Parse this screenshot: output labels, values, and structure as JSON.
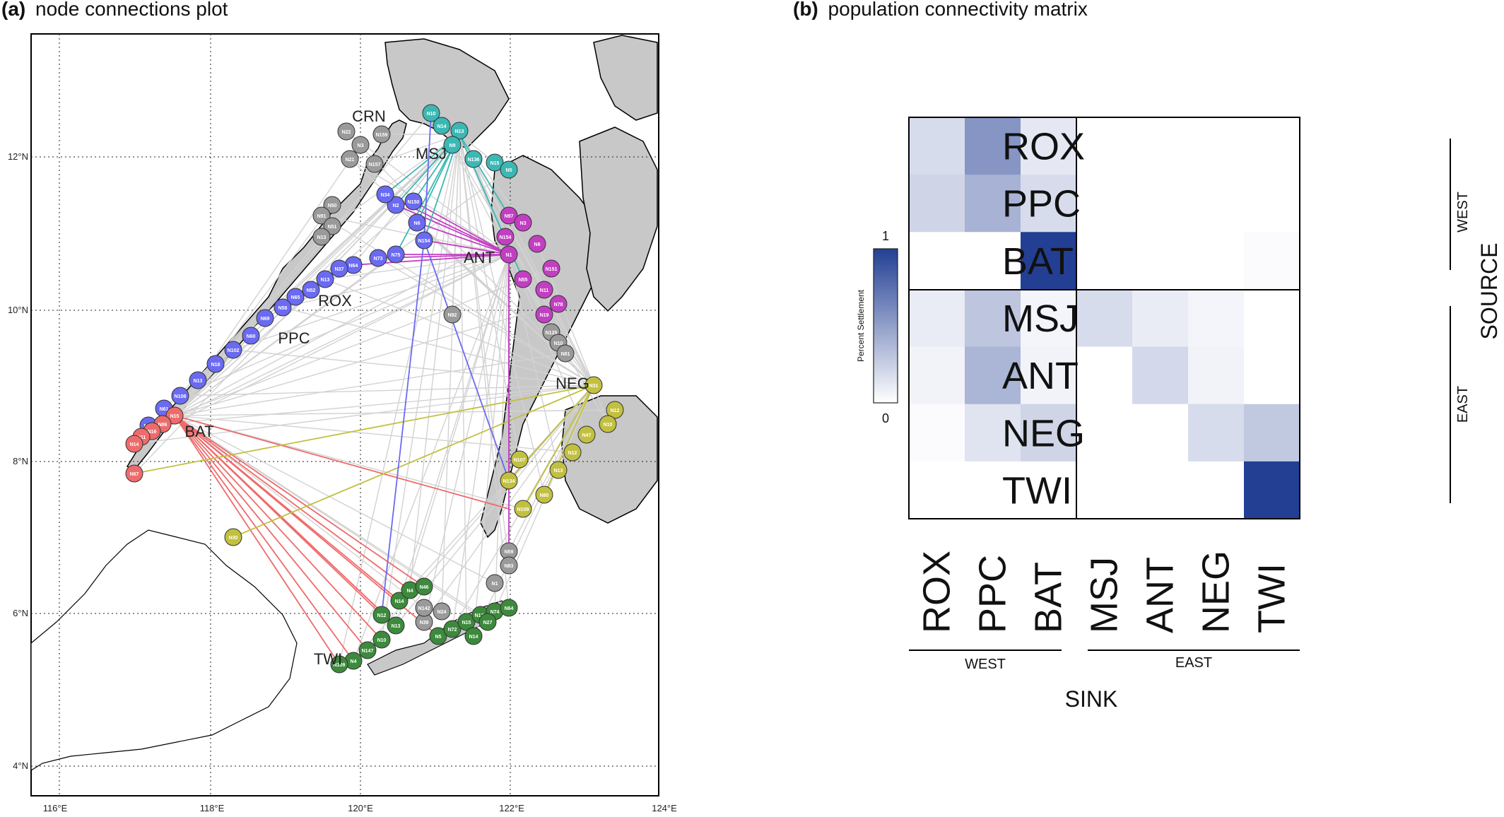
{
  "panel_a": {
    "letter": "(a)",
    "title": "node connections plot",
    "x_ticks": [
      "116°E",
      "118°E",
      "120°E",
      "122°E",
      "124°E"
    ],
    "y_ticks": [
      "12°N",
      "10°N",
      "8°N",
      "6°N",
      "4°N"
    ],
    "region_labels": [
      "CRN",
      "MSJ",
      "ANT",
      "ROX",
      "PPC",
      "NEG",
      "BAT",
      "TWI"
    ],
    "colors": {
      "west_blue": "#6a6af2",
      "msj_teal": "#3cb8b4",
      "ant_magenta": "#c23fc2",
      "neg_olive": "#c2c040",
      "bat_red": "#ef6b6b",
      "twi_green": "#3d8a3d",
      "other_gray": "#9a9a9a",
      "land": "#c8c8c8",
      "link_gray": "#d2d2d2"
    },
    "nodes": {
      "CRN": [
        "N22",
        "N159",
        "N3",
        "N21",
        "N157"
      ],
      "MSJ": [
        "N10",
        "N14",
        "N13",
        "N9",
        "N136",
        "N15",
        "N5"
      ],
      "ROX": [
        "N2",
        "N34",
        "N150",
        "N6",
        "N154",
        "N75",
        "N73",
        "N64",
        "N37",
        "N13",
        "N52",
        "N65",
        "N58",
        "N69",
        "N60",
        "N102",
        "N18",
        "N13",
        "N108",
        "N61",
        "N83"
      ],
      "ANT": [
        "N97",
        "N3",
        "N154",
        "N8",
        "N1",
        "N151",
        "N55",
        "N11",
        "N78",
        "N19"
      ],
      "NEG": [
        "N31",
        "N12",
        "N10",
        "N47",
        "N12",
        "N13",
        "N80",
        "N109",
        "N134",
        "N107"
      ],
      "BAT": [
        "N15",
        "N86",
        "N16",
        "N11",
        "N14",
        "N67"
      ],
      "TWI": [
        "N12",
        "N14",
        "N4",
        "N46",
        "N13",
        "N10",
        "N147",
        "N4",
        "N109",
        "N5",
        "N72",
        "N15",
        "N139",
        "N74",
        "N64",
        "N27",
        "N14"
      ],
      "OTHER": [
        "N92",
        "N50",
        "N91",
        "N51",
        "N13",
        "N125",
        "N10",
        "N81",
        "N59",
        "N83",
        "N1",
        "N39",
        "N24",
        "N142"
      ],
      "N30": "N30"
    },
    "link_stats": {
      "total_gray_links": 120
    }
  },
  "panel_b": {
    "letter": "(b)",
    "title": "population connectivity matrix",
    "colorbar": {
      "max_label": "1",
      "min_label": "0",
      "title": "Percent Settlement",
      "high_color": "#233f94",
      "low_color": "#ffffff"
    },
    "row_group_labels": {
      "west": "WEST",
      "east": "EAST"
    },
    "col_group_labels": {
      "west": "WEST",
      "east": "EAST"
    },
    "source_label": "SOURCE",
    "sink_label": "SINK"
  },
  "chart_data": {
    "type": "heatmap",
    "title": "population connectivity matrix",
    "xlabel": "SINK",
    "ylabel": "SOURCE",
    "rows": [
      "ROX",
      "PPC",
      "BAT",
      "MSJ",
      "ANT",
      "NEG",
      "TWI"
    ],
    "cols": [
      "ROX",
      "PPC",
      "BAT",
      "MSJ",
      "ANT",
      "NEG",
      "TWI"
    ],
    "row_groups": [
      {
        "name": "WEST",
        "members": [
          "ROX",
          "PPC",
          "BAT"
        ]
      },
      {
        "name": "EAST",
        "members": [
          "MSJ",
          "ANT",
          "NEG",
          "TWI"
        ]
      }
    ],
    "col_groups": [
      {
        "name": "WEST",
        "members": [
          "ROX",
          "PPC",
          "BAT"
        ]
      },
      {
        "name": "EAST",
        "members": [
          "MSJ",
          "ANT",
          "NEG",
          "TWI"
        ]
      }
    ],
    "values": [
      [
        0.18,
        0.55,
        0.12,
        0.0,
        0.0,
        0.0,
        0.0
      ],
      [
        0.22,
        0.4,
        0.18,
        0.0,
        0.0,
        0.0,
        0.0
      ],
      [
        0.0,
        0.0,
        1.0,
        0.0,
        0.0,
        0.0,
        0.02
      ],
      [
        0.1,
        0.3,
        0.05,
        0.18,
        0.1,
        0.05,
        0.0
      ],
      [
        0.06,
        0.38,
        0.06,
        0.0,
        0.2,
        0.06,
        0.0
      ],
      [
        0.02,
        0.14,
        0.22,
        0.0,
        0.0,
        0.18,
        0.28
      ],
      [
        0.0,
        0.0,
        0.0,
        0.0,
        0.0,
        0.0,
        1.0
      ]
    ],
    "range": [
      0,
      1
    ],
    "colorbar_label": "Percent Settlement"
  }
}
